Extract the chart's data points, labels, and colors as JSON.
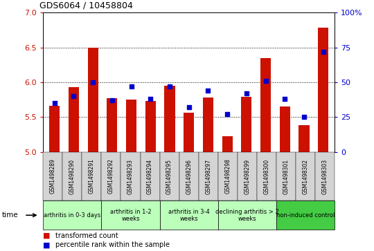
{
  "title": "GDS6064 / 10458804",
  "samples": [
    "GSM1498289",
    "GSM1498290",
    "GSM1498291",
    "GSM1498292",
    "GSM1498293",
    "GSM1498294",
    "GSM1498295",
    "GSM1498296",
    "GSM1498297",
    "GSM1498298",
    "GSM1498299",
    "GSM1498300",
    "GSM1498301",
    "GSM1498302",
    "GSM1498303"
  ],
  "transformed_count": [
    5.66,
    5.93,
    6.5,
    5.77,
    5.75,
    5.73,
    5.95,
    5.56,
    5.78,
    5.22,
    5.79,
    6.35,
    5.65,
    5.38,
    6.78
  ],
  "percentile_rank": [
    35,
    40,
    50,
    37,
    47,
    38,
    47,
    32,
    44,
    27,
    42,
    51,
    38,
    25,
    72
  ],
  "ylim_left": [
    5.0,
    7.0
  ],
  "ylim_right": [
    0,
    100
  ],
  "yticks_left": [
    5.0,
    5.5,
    6.0,
    6.5,
    7.0
  ],
  "yticks_right": [
    0,
    25,
    50,
    75,
    100
  ],
  "bar_color": "#cc1100",
  "percentile_color": "#0000cc",
  "groups": [
    {
      "label": "arthritis in 0-3 days",
      "start": 0,
      "end": 3,
      "color": "#bbffbb"
    },
    {
      "label": "arthritis in 1-2\nweeks",
      "start": 3,
      "end": 6,
      "color": "#bbffbb"
    },
    {
      "label": "arthritis in 3-4\nweeks",
      "start": 6,
      "end": 9,
      "color": "#bbffbb"
    },
    {
      "label": "declining arthritis > 2\nweeks",
      "start": 9,
      "end": 12,
      "color": "#bbffbb"
    },
    {
      "label": "non-induced control",
      "start": 12,
      "end": 15,
      "color": "#44cc44"
    }
  ],
  "legend_red_label": "transformed count",
  "legend_blue_label": "percentile rank within the sample",
  "bar_width": 0.55
}
